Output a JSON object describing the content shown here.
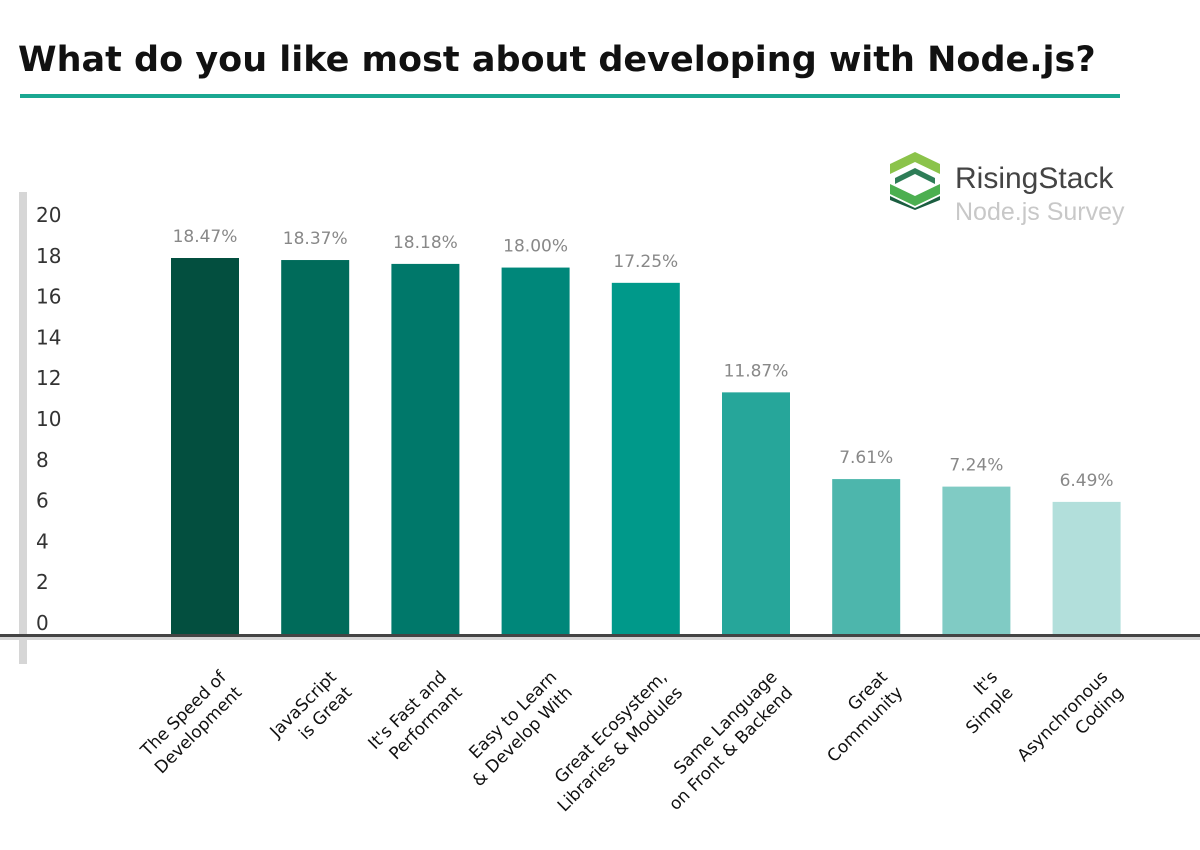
{
  "title": "What do you like most about developing with Node.js?",
  "branding": {
    "name": "RisingStack",
    "subtitle": "Node.js Survey"
  },
  "colors": {
    "accent": "#1aa892",
    "bars": [
      "#034f3f",
      "#006b5a",
      "#00786a",
      "#00877a",
      "#00998a",
      "#26a69a",
      "#4db6ac",
      "#80cbc4",
      "#b2dfdb"
    ]
  },
  "chart_data": {
    "type": "bar",
    "title": "What do you like most about developing with Node.js?",
    "categories": [
      [
        "The Speed of",
        "Development"
      ],
      [
        "JavaScript",
        "is Great"
      ],
      [
        "It's Fast and",
        "Performant"
      ],
      [
        "Easy to Learn",
        "& Develop With"
      ],
      [
        "Great Ecosystem,",
        "Libraries & Modules"
      ],
      [
        "Same Language",
        "on Front & Backend"
      ],
      [
        "Great",
        "Community"
      ],
      [
        "It's",
        "Simple"
      ],
      [
        "Asynchronous",
        "Coding"
      ]
    ],
    "values": [
      18.47,
      18.37,
      18.18,
      18.0,
      17.25,
      11.87,
      7.61,
      7.24,
      6.49
    ],
    "data_labels": [
      "18.47%",
      "18.37%",
      "18.18%",
      "18.00%",
      "17.25%",
      "11.87%",
      "7.61%",
      "7.24%",
      "6.49%"
    ],
    "y_ticks": [
      "0",
      "2",
      "4",
      "6",
      "8",
      "10",
      "12",
      "14",
      "16",
      "18",
      "20"
    ],
    "ylim": [
      0,
      20
    ],
    "grid": false,
    "xlabel": "",
    "ylabel": ""
  }
}
